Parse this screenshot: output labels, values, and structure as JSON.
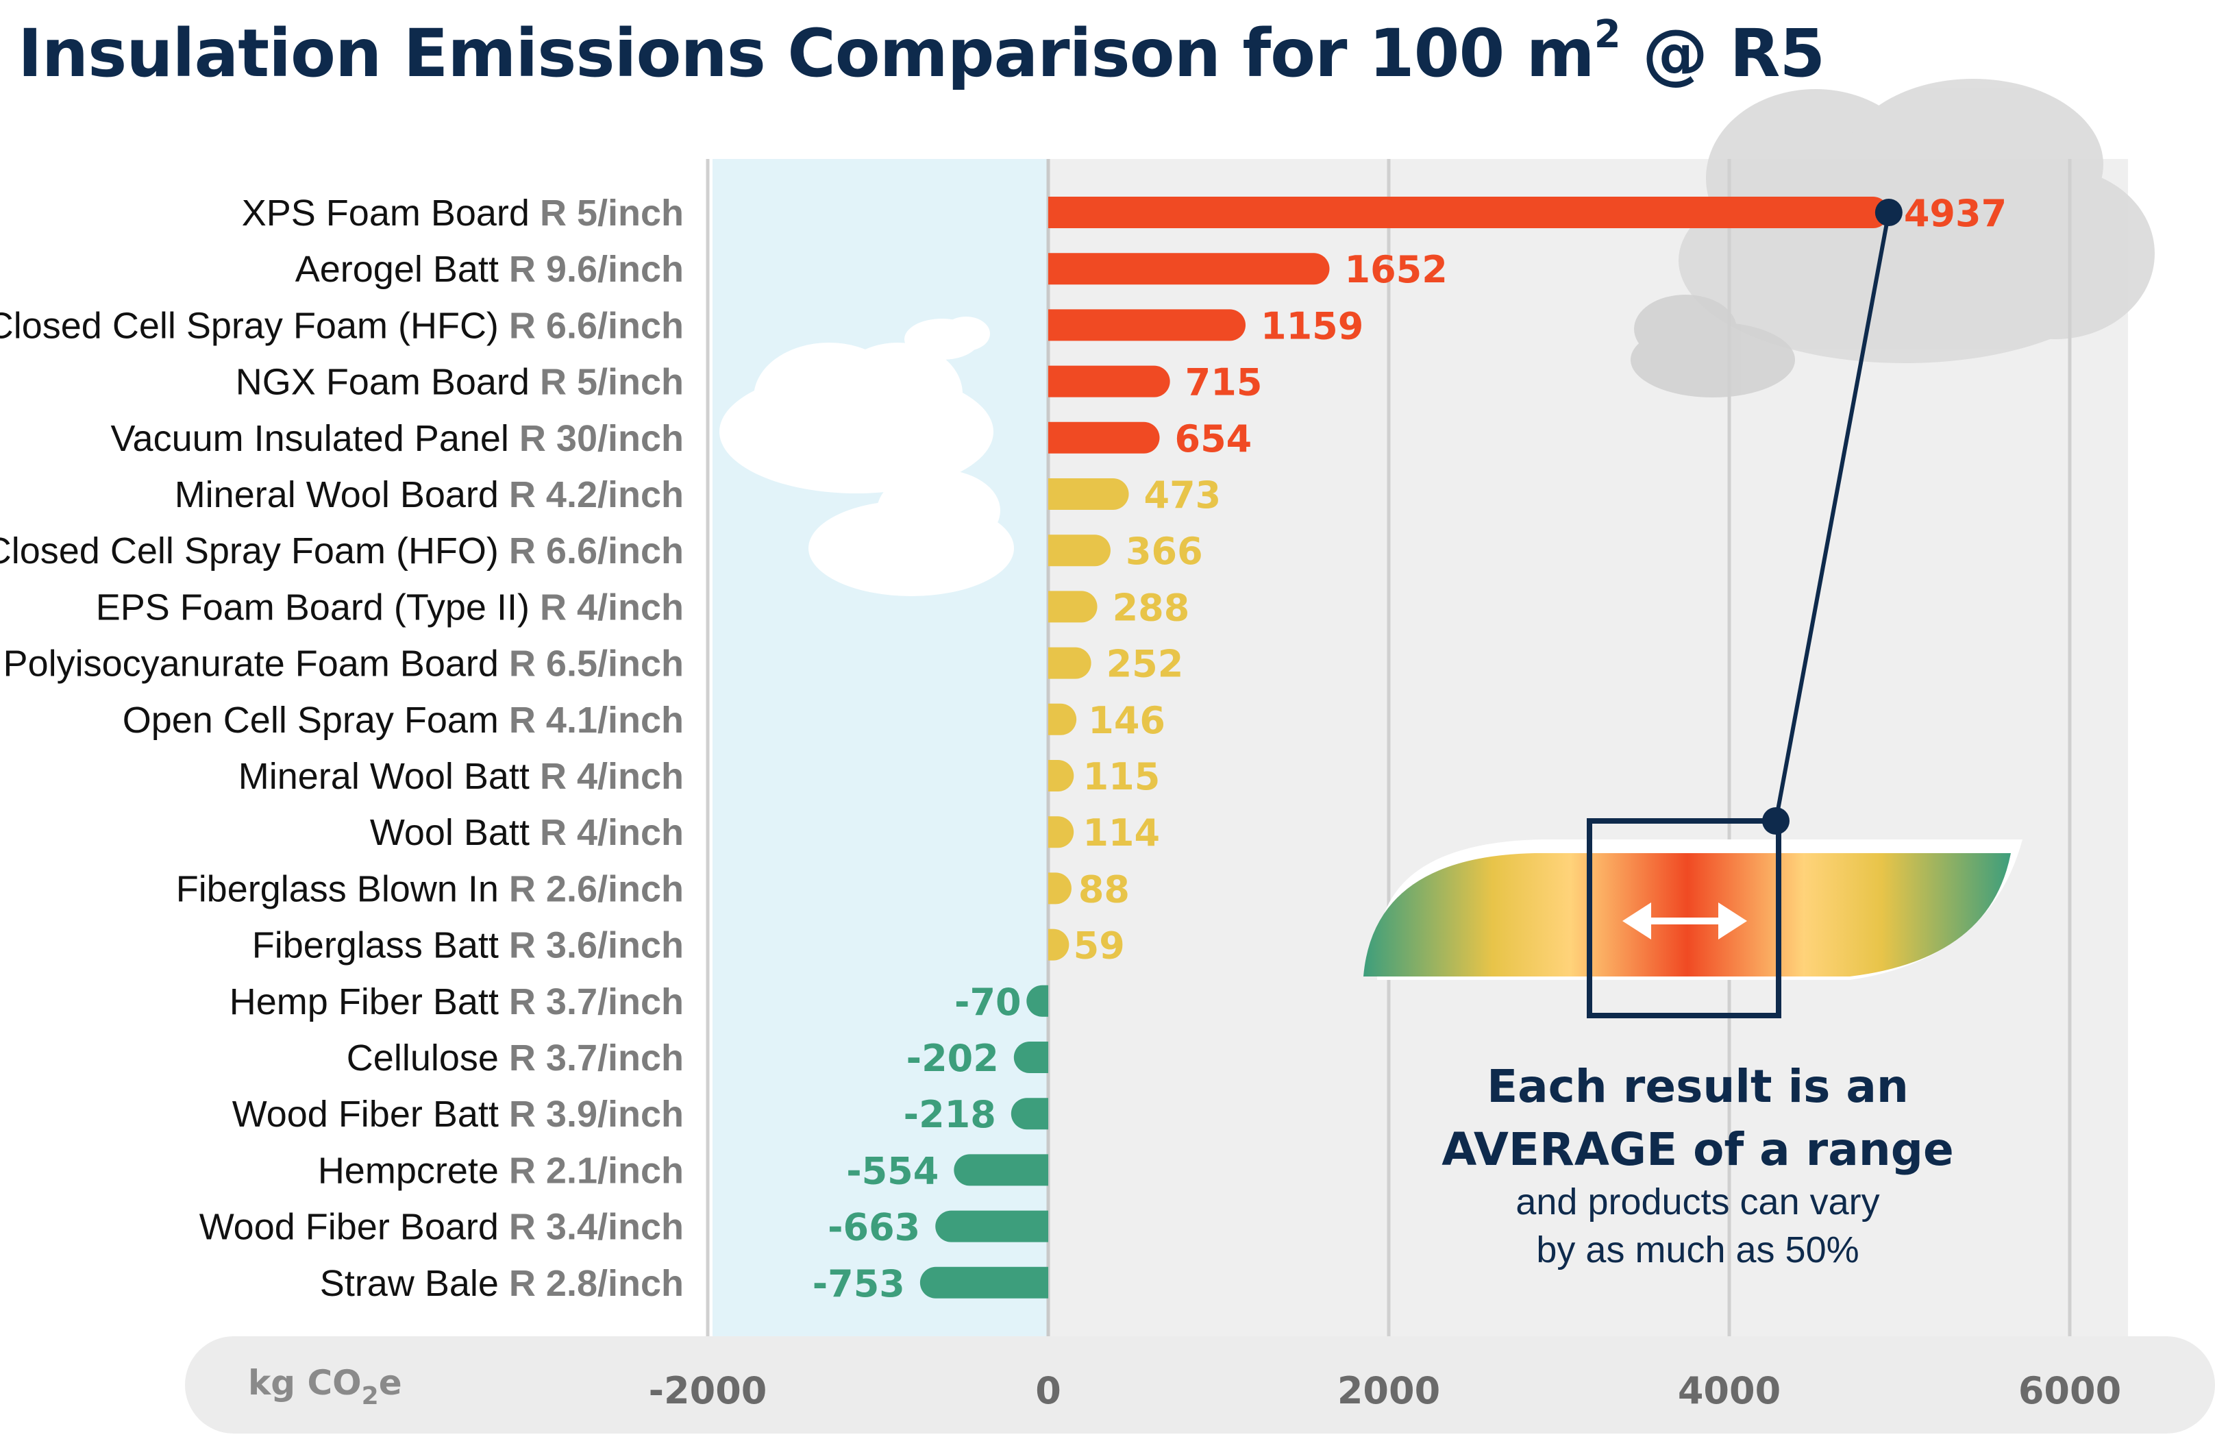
{
  "title": "Insulation Emissions Comparison for 100 m² @ R5",
  "title_parts": {
    "main": "Insulation Emissions Comparison for 100 m",
    "sup": "2",
    "tail": " @ R5"
  },
  "unit_label": {
    "main": "kg CO",
    "sub": "2",
    "tail": "e"
  },
  "annotation": {
    "line1": "Each result is an",
    "line2": "AVERAGE of a range",
    "line3": "and products can vary",
    "line4": "by as much as 50%"
  },
  "colors": {
    "high": "#f04a23",
    "medium": "#e8c449",
    "low": "#3d9e7c",
    "title": "#0e2a4c",
    "negative_zone": "#e2f3f9",
    "plot_background": "#efefef",
    "label_text": "#111111",
    "rvalue_text": "#7d7d7d",
    "axis_band": "#ececec",
    "connector": "#0e2a4c"
  },
  "chart_data": {
    "type": "bar",
    "orientation": "horizontal",
    "x_unit": "kg CO2e",
    "xlim": [
      -2000,
      6000
    ],
    "x_ticks": [
      -2000,
      0,
      2000,
      4000,
      6000
    ],
    "grid": true,
    "categories": [
      {
        "name": "XPS Foam Board",
        "rvalue": "R 5/inch",
        "value": 4937,
        "label": "4937",
        "level": "high"
      },
      {
        "name": "Aerogel Batt",
        "rvalue": "R 9.6/inch",
        "value": 1652,
        "label": "1652",
        "level": "high"
      },
      {
        "name": "Closed Cell Spray Foam (HFC)",
        "rvalue": "R 6.6/inch",
        "value": 1159,
        "label": "1159",
        "level": "high"
      },
      {
        "name": "NGX Foam Board",
        "rvalue": "R 5/inch",
        "value": 715,
        "label": "715",
        "level": "high"
      },
      {
        "name": "Vacuum Insulated Panel",
        "rvalue": "R 30/inch",
        "value": 654,
        "label": "654",
        "level": "high"
      },
      {
        "name": "Mineral Wool Board",
        "rvalue": "R 4.2/inch",
        "value": 473,
        "label": "473",
        "level": "medium"
      },
      {
        "name": "Closed Cell Spray Foam (HFO)",
        "rvalue": "R 6.6/inch",
        "value": 366,
        "label": "366",
        "level": "medium"
      },
      {
        "name": "EPS Foam Board (Type II)",
        "rvalue": "R 4/inch",
        "value": 288,
        "label": "288",
        "level": "medium"
      },
      {
        "name": "Polyisocyanurate Foam Board",
        "rvalue": "R 6.5/inch",
        "value": 252,
        "label": "252",
        "level": "medium"
      },
      {
        "name": "Open Cell Spray Foam",
        "rvalue": "R 4.1/inch",
        "value": 146,
        "label": "146",
        "level": "medium"
      },
      {
        "name": "Mineral Wool Batt",
        "rvalue": "R 4/inch",
        "value": 115,
        "label": "115",
        "level": "medium"
      },
      {
        "name": "Wool Batt",
        "rvalue": "R 4/inch",
        "value": 114,
        "label": "114",
        "level": "medium"
      },
      {
        "name": "Fiberglass Blown In",
        "rvalue": "R 2.6/inch",
        "value": 88,
        "label": "88",
        "level": "medium"
      },
      {
        "name": "Fiberglass Batt",
        "rvalue": "R 3.6/inch",
        "value": 59,
        "label": "59",
        "level": "medium"
      },
      {
        "name": "Hemp Fiber Batt",
        "rvalue": "R 3.7/inch",
        "value": -70,
        "label": "-70",
        "level": "low"
      },
      {
        "name": "Cellulose",
        "rvalue": "R 3.7/inch",
        "value": -202,
        "label": "-202",
        "level": "low"
      },
      {
        "name": "Wood Fiber Batt",
        "rvalue": "R 3.9/inch",
        "value": -218,
        "label": "-218",
        "level": "low"
      },
      {
        "name": "Hempcrete",
        "rvalue": "R 2.1/inch",
        "value": -554,
        "label": "-554",
        "level": "low"
      },
      {
        "name": "Wood Fiber Board",
        "rvalue": "R 3.4/inch",
        "value": -663,
        "label": "-663",
        "level": "low"
      },
      {
        "name": "Straw Bale",
        "rvalue": "R 2.8/inch",
        "value": -753,
        "label": "-753",
        "level": "low"
      }
    ]
  }
}
